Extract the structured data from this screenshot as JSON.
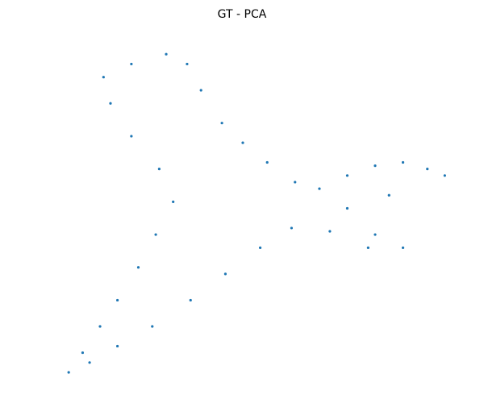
{
  "chart_data": {
    "type": "scatter",
    "title": "GT - PCA",
    "xlabel": "",
    "ylabel": "",
    "axes_visible": false,
    "grid": false,
    "marker_color": "#1f77b4",
    "approximate_point_count": 1500,
    "shape": "point cloud in data units (y up); estimated envelope of the PCA embedding",
    "xlim": [
      -10,
      110
    ],
    "ylim": [
      0,
      100
    ],
    "series": [
      {
        "values": [
          {
            "x": 0,
            "y": 0
          },
          {
            "x": 4,
            "y": 6
          },
          {
            "x": 9,
            "y": 14
          },
          {
            "x": 14,
            "y": 22
          },
          {
            "x": 20,
            "y": 32
          },
          {
            "x": 25,
            "y": 42
          },
          {
            "x": 30,
            "y": 52
          },
          {
            "x": 26,
            "y": 62
          },
          {
            "x": 18,
            "y": 72
          },
          {
            "x": 12,
            "y": 82
          },
          {
            "x": 10,
            "y": 90
          },
          {
            "x": 18,
            "y": 94
          },
          {
            "x": 28,
            "y": 97
          },
          {
            "x": 34,
            "y": 94
          },
          {
            "x": 38,
            "y": 86
          },
          {
            "x": 44,
            "y": 76
          },
          {
            "x": 50,
            "y": 70
          },
          {
            "x": 57,
            "y": 64
          },
          {
            "x": 65,
            "y": 58
          },
          {
            "x": 72,
            "y": 56
          },
          {
            "x": 80,
            "y": 60
          },
          {
            "x": 88,
            "y": 63
          },
          {
            "x": 96,
            "y": 64
          },
          {
            "x": 103,
            "y": 62
          },
          {
            "x": 108,
            "y": 60
          },
          {
            "x": 92,
            "y": 54
          },
          {
            "x": 80,
            "y": 50
          },
          {
            "x": 88,
            "y": 42
          },
          {
            "x": 96,
            "y": 38
          },
          {
            "x": 86,
            "y": 38
          },
          {
            "x": 75,
            "y": 43
          },
          {
            "x": 64,
            "y": 44
          },
          {
            "x": 55,
            "y": 38
          },
          {
            "x": 45,
            "y": 30
          },
          {
            "x": 35,
            "y": 22
          },
          {
            "x": 24,
            "y": 14
          },
          {
            "x": 14,
            "y": 8
          },
          {
            "x": 6,
            "y": 3
          }
        ]
      }
    ]
  }
}
